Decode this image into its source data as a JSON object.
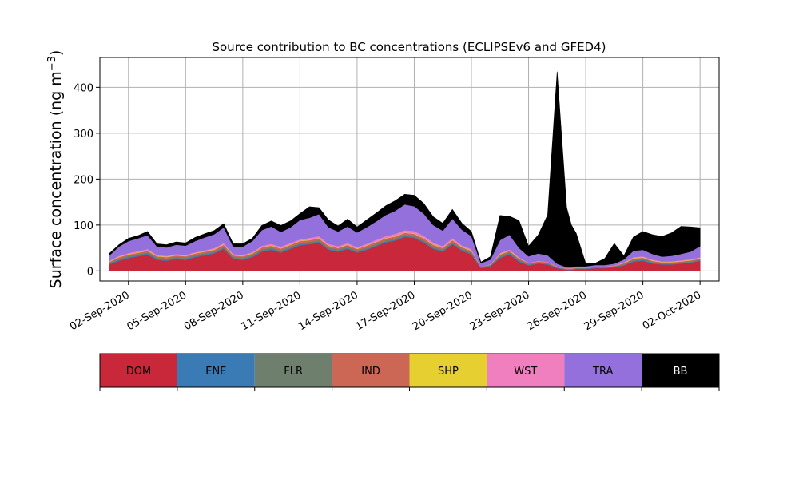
{
  "chart_data": {
    "type": "area",
    "stacked": true,
    "title": "Source contribution to BC concentrations (ECLIPSEv6 and GFED4)",
    "ylabel": "Surface concentration (ng m",
    "ylabel_sup": "−3",
    "ylabel_close": ")",
    "xlabel": "",
    "grid": true,
    "legend_placement": "bottom",
    "xlim": [
      "2020-08-31T12:00",
      "2020-10-03T00:00"
    ],
    "ylim": [
      -22,
      465
    ],
    "y_ticks": [
      0,
      100,
      200,
      300,
      400
    ],
    "x_ticks": [
      {
        "date": "2020-09-02",
        "label": "02-Sep-2020"
      },
      {
        "date": "2020-09-05",
        "label": "05-Sep-2020"
      },
      {
        "date": "2020-09-08",
        "label": "08-Sep-2020"
      },
      {
        "date": "2020-09-11",
        "label": "11-Sep-2020"
      },
      {
        "date": "2020-09-14",
        "label": "14-Sep-2020"
      },
      {
        "date": "2020-09-17",
        "label": "17-Sep-2020"
      },
      {
        "date": "2020-09-20",
        "label": "20-Sep-2020"
      },
      {
        "date": "2020-09-23",
        "label": "23-Sep-2020"
      },
      {
        "date": "2020-09-26",
        "label": "26-Sep-2020"
      },
      {
        "date": "2020-09-29",
        "label": "29-Sep-2020"
      },
      {
        "date": "2020-10-02",
        "label": "02-Oct-2020"
      }
    ],
    "x": [
      "2020-09-01T00:00",
      "2020-09-01T12:00",
      "2020-09-02T00:00",
      "2020-09-02T12:00",
      "2020-09-03T00:00",
      "2020-09-03T12:00",
      "2020-09-04T00:00",
      "2020-09-04T12:00",
      "2020-09-05T00:00",
      "2020-09-05T12:00",
      "2020-09-06T00:00",
      "2020-09-06T12:00",
      "2020-09-07T00:00",
      "2020-09-07T12:00",
      "2020-09-08T00:00",
      "2020-09-08T12:00",
      "2020-09-09T00:00",
      "2020-09-09T12:00",
      "2020-09-10T00:00",
      "2020-09-10T12:00",
      "2020-09-11T00:00",
      "2020-09-11T12:00",
      "2020-09-12T00:00",
      "2020-09-12T12:00",
      "2020-09-13T00:00",
      "2020-09-13T12:00",
      "2020-09-14T00:00",
      "2020-09-14T12:00",
      "2020-09-15T00:00",
      "2020-09-15T12:00",
      "2020-09-16T00:00",
      "2020-09-16T12:00",
      "2020-09-17T00:00",
      "2020-09-17T12:00",
      "2020-09-18T00:00",
      "2020-09-18T12:00",
      "2020-09-19T00:00",
      "2020-09-19T12:00",
      "2020-09-20T00:00",
      "2020-09-20T12:00",
      "2020-09-21T00:00",
      "2020-09-21T12:00",
      "2020-09-22T00:00",
      "2020-09-22T12:00",
      "2020-09-23T00:00",
      "2020-09-23T12:00",
      "2020-09-24T00:00",
      "2020-09-24T12:00",
      "2020-09-25T00:00",
      "2020-09-25T06:00",
      "2020-09-25T12:00",
      "2020-09-26T00:00",
      "2020-09-26T12:00",
      "2020-09-27T00:00",
      "2020-09-27T12:00",
      "2020-09-28T00:00",
      "2020-09-28T12:00",
      "2020-09-29T00:00",
      "2020-09-29T12:00",
      "2020-09-30T00:00",
      "2020-09-30T12:00",
      "2020-10-01T00:00",
      "2020-10-01T12:00",
      "2020-10-02T00:00"
    ],
    "series": [
      {
        "name": "DOM",
        "color": "#c8283a",
        "values": [
          14,
          22,
          28,
          32,
          36,
          24,
          22,
          26,
          24,
          30,
          34,
          38,
          48,
          26,
          24,
          30,
          42,
          46,
          40,
          48,
          56,
          58,
          62,
          46,
          42,
          48,
          40,
          46,
          54,
          62,
          66,
          74,
          72,
          62,
          48,
          42,
          58,
          44,
          36,
          6,
          10,
          28,
          36,
          20,
          12,
          16,
          14,
          6,
          2,
          2,
          4,
          4,
          6,
          6,
          8,
          12,
          20,
          22,
          16,
          14,
          14,
          16,
          18,
          22
        ]
      },
      {
        "name": "ENE",
        "color": "#3a7ab5",
        "values": [
          2,
          2,
          2,
          2,
          2,
          2,
          2,
          2,
          2,
          2,
          2,
          2,
          2,
          2,
          2,
          2,
          2,
          2,
          2,
          2,
          2,
          2,
          2,
          2,
          2,
          2,
          2,
          2,
          2,
          2,
          2,
          2,
          2,
          2,
          2,
          2,
          2,
          2,
          2,
          1,
          1,
          2,
          2,
          2,
          1,
          1,
          1,
          1,
          1,
          1,
          1,
          1,
          1,
          1,
          1,
          1,
          2,
          2,
          2,
          1,
          1,
          1,
          1,
          1
        ]
      },
      {
        "name": "FLR",
        "color": "#6f7f6e",
        "values": [
          2,
          3,
          3,
          3,
          3,
          3,
          3,
          3,
          3,
          3,
          3,
          3,
          3,
          3,
          3,
          3,
          3,
          3,
          3,
          3,
          3,
          3,
          3,
          3,
          3,
          3,
          3,
          3,
          3,
          3,
          3,
          3,
          3,
          3,
          3,
          3,
          3,
          3,
          3,
          1,
          2,
          3,
          3,
          3,
          2,
          2,
          2,
          1,
          1,
          1,
          1,
          1,
          1,
          1,
          1,
          2,
          3,
          3,
          2,
          2,
          2,
          2,
          2,
          2
        ]
      },
      {
        "name": "IND",
        "color": "#cc6655",
        "values": [
          2,
          3,
          3,
          3,
          3,
          3,
          3,
          3,
          3,
          3,
          3,
          3,
          4,
          3,
          3,
          3,
          4,
          4,
          4,
          4,
          4,
          4,
          4,
          4,
          3,
          4,
          3,
          4,
          4,
          4,
          4,
          4,
          4,
          4,
          4,
          3,
          4,
          3,
          3,
          1,
          1,
          3,
          3,
          2,
          2,
          2,
          2,
          1,
          1,
          1,
          1,
          1,
          1,
          1,
          1,
          2,
          2,
          2,
          2,
          2,
          2,
          2,
          2,
          2
        ]
      },
      {
        "name": "SHP",
        "color": "#e6cf30",
        "values": [
          1,
          1,
          1,
          1,
          1,
          1,
          1,
          1,
          1,
          1,
          1,
          1,
          1,
          1,
          1,
          1,
          1,
          1,
          1,
          1,
          1,
          1,
          1,
          1,
          1,
          1,
          1,
          1,
          1,
          1,
          1,
          1,
          1,
          1,
          1,
          1,
          1,
          1,
          1,
          0,
          0,
          1,
          1,
          1,
          0,
          0,
          0,
          0,
          0,
          0,
          0,
          0,
          0,
          0,
          0,
          1,
          1,
          1,
          1,
          1,
          1,
          1,
          1,
          1
        ]
      },
      {
        "name": "WST",
        "color": "#f07fbf",
        "values": [
          1,
          2,
          2,
          2,
          3,
          2,
          2,
          2,
          2,
          2,
          2,
          3,
          3,
          2,
          2,
          2,
          3,
          3,
          3,
          3,
          3,
          4,
          4,
          3,
          3,
          3,
          3,
          3,
          4,
          4,
          5,
          5,
          5,
          5,
          4,
          3,
          4,
          3,
          3,
          0,
          1,
          2,
          2,
          2,
          1,
          1,
          1,
          1,
          1,
          1,
          1,
          1,
          1,
          1,
          1,
          1,
          2,
          2,
          2,
          1,
          1,
          1,
          2,
          2
        ]
      },
      {
        "name": "TRA",
        "color": "#9370db",
        "values": [
          12,
          20,
          26,
          28,
          30,
          18,
          18,
          20,
          20,
          24,
          28,
          30,
          34,
          16,
          18,
          24,
          34,
          38,
          32,
          34,
          42,
          44,
          48,
          36,
          32,
          36,
          32,
          36,
          40,
          46,
          50,
          56,
          54,
          48,
          38,
          34,
          42,
          34,
          28,
          8,
          10,
          28,
          32,
          20,
          14,
          16,
          14,
          6,
          2,
          2,
          2,
          2,
          3,
          3,
          4,
          6,
          14,
          14,
          12,
          10,
          12,
          14,
          16,
          24
        ]
      },
      {
        "name": "BB",
        "color": "#000000",
        "values": [
          4,
          4,
          6,
          6,
          8,
          6,
          6,
          6,
          6,
          8,
          8,
          8,
          8,
          6,
          6,
          6,
          10,
          12,
          14,
          14,
          14,
          24,
          14,
          16,
          12,
          16,
          12,
          16,
          18,
          20,
          22,
          22,
          24,
          22,
          18,
          16,
          20,
          14,
          10,
          2,
          6,
          54,
          40,
          60,
          22,
          40,
          88,
          418,
          130,
          92,
          72,
          6,
          4,
          14,
          44,
          8,
          30,
          40,
          42,
          44,
          50,
          60,
          54,
          40
        ]
      }
    ]
  }
}
